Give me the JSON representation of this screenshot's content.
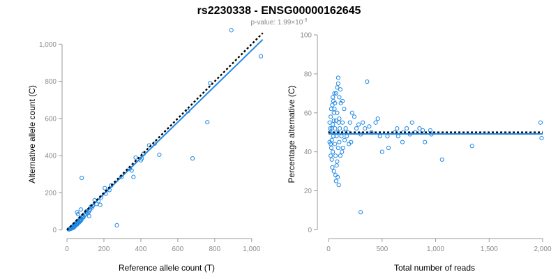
{
  "figure": {
    "title": "rs2230338 - ENSG00000162645",
    "pvalue_prefix": "p-value: 1.99×10",
    "pvalue_exponent": "-9",
    "accent_color": "#1f88e5",
    "reference_line_color": "#000000"
  },
  "chart_data": [
    {
      "type": "scatter",
      "xlabel": "Reference allele count (T)",
      "ylabel": "Alternative allele count (C)",
      "xlim": [
        0,
        1080
      ],
      "ylim": [
        -20,
        1050
      ],
      "xticks": [
        0,
        200,
        400,
        600,
        800,
        1000
      ],
      "xtick_labels": [
        "0",
        "200",
        "400",
        "600",
        "800",
        "1,000"
      ],
      "yticks": [
        0,
        200,
        400,
        600,
        800,
        1000
      ],
      "ytick_labels": [
        "0",
        "200",
        "400",
        "600",
        "800",
        "1,000"
      ],
      "grid": false,
      "marker": "open circle",
      "points": {
        "x": [
          890,
          1050,
          775,
          760,
          655,
          680,
          500,
          475,
          445,
          415,
          405,
          400,
          372,
          360,
          340,
          350,
          295,
          270,
          240,
          230,
          210,
          205,
          185,
          170,
          160,
          150,
          140,
          135,
          130,
          125,
          120,
          115,
          110,
          105,
          100,
          95,
          90,
          88,
          85,
          82,
          80,
          78,
          75,
          72,
          70,
          68,
          65,
          62,
          60,
          58,
          55,
          52,
          50,
          48,
          45,
          42,
          40,
          38,
          35,
          32,
          30,
          28,
          25,
          22,
          20,
          18,
          15,
          12,
          10,
          80,
          75,
          60,
          55,
          120,
          180
        ],
        "y": [
          1075,
          935,
          790,
          580,
          640,
          385,
          405,
          465,
          455,
          410,
          385,
          375,
          390,
          285,
          330,
          320,
          285,
          25,
          240,
          215,
          195,
          225,
          175,
          155,
          140,
          160,
          130,
          120,
          125,
          110,
          100,
          95,
          90,
          100,
          85,
          80,
          70,
          75,
          65,
          70,
          60,
          55,
          50,
          55,
          45,
          50,
          40,
          45,
          38,
          35,
          30,
          33,
          28,
          25,
          22,
          20,
          18,
          15,
          12,
          15,
          10,
          12,
          8,
          10,
          6,
          8,
          5,
          4,
          3,
          280,
          110,
          85,
          95,
          75,
          135
        ]
      },
      "reference_line": {
        "style": "dotted",
        "x": [
          0,
          1060
        ],
        "y": [
          0,
          1060
        ]
      },
      "fit_line": {
        "style": "solid",
        "x": [
          0,
          1060
        ],
        "y": [
          0,
          1025
        ]
      }
    },
    {
      "type": "scatter",
      "xlabel": "Total number of reads",
      "ylabel": "Percentage alternative (C)",
      "xlim": [
        -20,
        2000
      ],
      "ylim": [
        -2,
        100
      ],
      "xticks": [
        0,
        500,
        1000,
        1500,
        2000
      ],
      "xtick_labels": [
        "0",
        "500",
        "1,000",
        "1,500",
        "2,000"
      ],
      "yticks": [
        0,
        20,
        40,
        60,
        80,
        100
      ],
      "ytick_labels": [
        "0",
        "20",
        "40",
        "60",
        "80",
        "100"
      ],
      "grid": false,
      "marker": "open circle",
      "points": {
        "x": [
          1980,
          1990,
          1340,
          1060,
          960,
          950,
          900,
          880,
          850,
          810,
          780,
          760,
          730,
          700,
          690,
          650,
          640,
          620,
          560,
          550,
          500,
          480,
          460,
          440,
          400,
          380,
          360,
          340,
          320,
          300,
          300,
          280,
          260,
          240,
          220,
          210,
          200,
          190,
          180,
          170,
          160,
          150,
          145,
          140,
          135,
          130,
          125,
          120,
          115,
          110,
          105,
          100,
          100,
          95,
          90,
          90,
          85,
          80,
          80,
          75,
          70,
          70,
          65,
          60,
          60,
          55,
          50,
          50,
          45,
          40,
          40,
          35,
          30,
          30,
          25,
          20,
          20,
          15,
          10,
          10,
          110,
          90,
          70,
          100,
          80,
          60,
          130,
          95,
          85,
          75,
          65,
          55,
          50,
          45,
          40,
          35,
          30,
          25,
          20,
          15
        ],
        "y": [
          55,
          47,
          43,
          36,
          49,
          51,
          45,
          51,
          52,
          50,
          55,
          49,
          52,
          50,
          45,
          48,
          52,
          50,
          42,
          48,
          40,
          48,
          57,
          55,
          50,
          53,
          76,
          52,
          55,
          49,
          9,
          54,
          52,
          58,
          60,
          45,
          55,
          44,
          50,
          48,
          52,
          46,
          62,
          50,
          42,
          55,
          40,
          48,
          65,
          38,
          52,
          45,
          57,
          55,
          42,
          78,
          50,
          60,
          35,
          48,
          25,
          56,
          38,
          52,
          44,
          62,
          30,
          56,
          48,
          54,
          40,
          64,
          46,
          52,
          42,
          58,
          38,
          50,
          55,
          45,
          72,
          75,
          70,
          68,
          73,
          65,
          66,
          23,
          27,
          33,
          28,
          70,
          60,
          66,
          68,
          32,
          36,
          62,
          44,
          52
        ]
      },
      "reference_line": {
        "style": "dotted",
        "x": [
          0,
          2000
        ],
        "y": [
          50,
          50
        ]
      },
      "fit_line": {
        "style": "solid",
        "x": [
          0,
          2000
        ],
        "y": [
          49.2,
          49.2
        ]
      }
    }
  ]
}
